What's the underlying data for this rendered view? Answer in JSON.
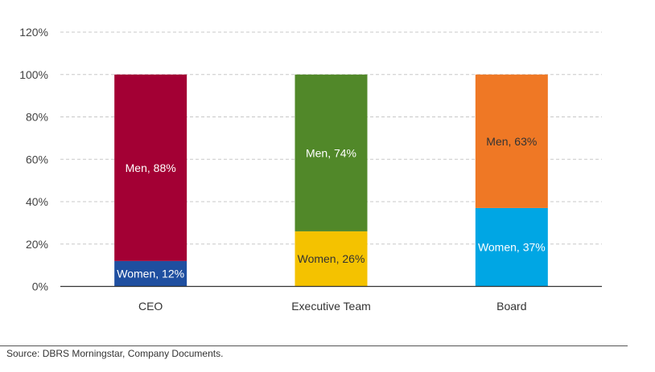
{
  "chart_data": {
    "type": "bar",
    "stacked": true,
    "categories": [
      "CEO",
      "Executive Team",
      "Board"
    ],
    "series": [
      {
        "key": "women",
        "values": [
          12,
          26,
          37
        ],
        "labels": [
          "Women, 12%",
          "Women, 26%",
          "Women, 37%"
        ],
        "colors": [
          "#1f4fa0",
          "#f4c200",
          "#00a6e4"
        ],
        "label_colors": [
          "#ffffff",
          "#333333",
          "#ffffff"
        ]
      },
      {
        "key": "men",
        "values": [
          88,
          74,
          63
        ],
        "labels": [
          "Men, 88%",
          "Men, 74%",
          "Men, 63%"
        ],
        "colors": [
          "#a30034",
          "#518829",
          "#ef7825"
        ],
        "label_colors": [
          "#ffffff",
          "#ffffff",
          "#333333"
        ]
      }
    ],
    "yticks": [
      "0%",
      "20%",
      "40%",
      "60%",
      "80%",
      "100%",
      "120%"
    ],
    "ylim": [
      0,
      120
    ],
    "grid": true
  },
  "source": "Source: DBRS Morningstar, Company Documents."
}
